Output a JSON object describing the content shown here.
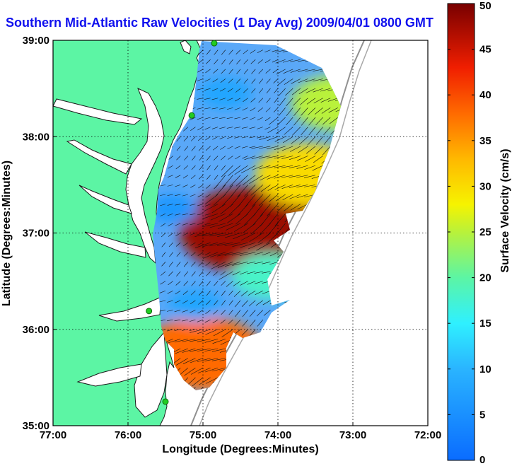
{
  "chart_data": {
    "type": "heatmap",
    "title": "Southern Mid-Atlantic Raw Velocities (1 Day Avg) 2009/04/01 0800 GMT",
    "xlabel": "Longitude (Degrees:Minutes)",
    "ylabel": "Latitude (Degrees:Minutes)",
    "colorbar_label": "Surface Velocity (cm/s)",
    "xlim": [
      -77,
      -72
    ],
    "ylim": [
      35,
      39
    ],
    "clim": [
      0,
      50
    ],
    "x_ticks": [
      {
        "value": -77,
        "label": "77:00"
      },
      {
        "value": -76,
        "label": "76:00"
      },
      {
        "value": -75,
        "label": "75:00"
      },
      {
        "value": -74,
        "label": "74:00"
      },
      {
        "value": -73,
        "label": "73:00"
      },
      {
        "value": -72,
        "label": "72:00"
      }
    ],
    "y_ticks": [
      {
        "value": 35,
        "label": "35:00"
      },
      {
        "value": 36,
        "label": "36:00"
      },
      {
        "value": 37,
        "label": "37:00"
      },
      {
        "value": 38,
        "label": "38:00"
      },
      {
        "value": 39,
        "label": "39:00"
      }
    ],
    "colorbar_ticks": [
      0,
      5,
      10,
      15,
      20,
      25,
      30,
      35,
      40,
      45,
      50
    ],
    "grid": true,
    "colors": {
      "land": "#5cf5a4",
      "title": "#1010ee",
      "coast": "#222222",
      "bathy": "#909090",
      "station": "#22cc22"
    },
    "stations": [
      {
        "lon": -74.85,
        "lat": 38.97
      },
      {
        "lon": -75.15,
        "lat": 38.22
      },
      {
        "lon": -75.72,
        "lat": 36.19
      },
      {
        "lon": -75.5,
        "lat": 35.25
      }
    ],
    "velocity_features": [
      {
        "lon": -74.35,
        "lat": 37.03,
        "speed": 48
      },
      {
        "lon": -75.0,
        "lat": 35.75,
        "speed": 38
      },
      {
        "lon": -73.6,
        "lat": 37.6,
        "speed": 30
      },
      {
        "lon": -73.2,
        "lat": 38.35,
        "speed": 25
      },
      {
        "lon": -74.7,
        "lat": 38.45,
        "speed": 8
      },
      {
        "lon": -75.4,
        "lat": 37.25,
        "speed": 6
      },
      {
        "lon": -75.1,
        "lat": 36.25,
        "speed": 8
      },
      {
        "lon": -74.1,
        "lat": 36.55,
        "speed": 18
      }
    ]
  }
}
